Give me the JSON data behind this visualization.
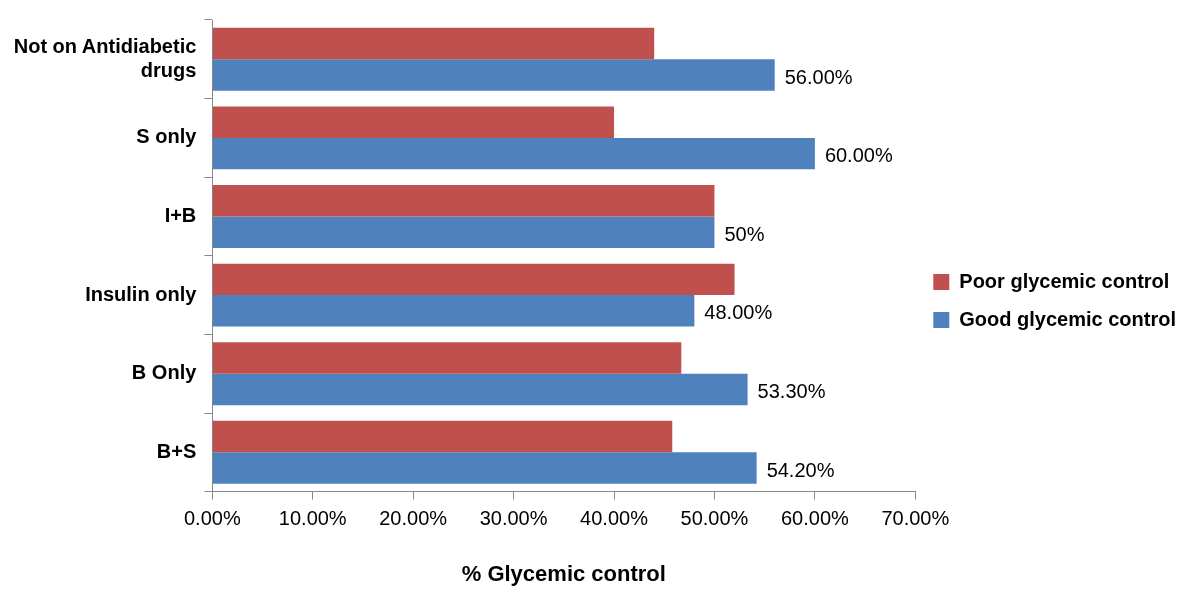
{
  "chart_data": {
    "type": "bar",
    "orientation": "horizontal",
    "xlabel": "% Glycemic control",
    "categories": [
      "Not on Antidiabetic drugs",
      "S only",
      "I+B",
      "Insulin only",
      "B Only",
      "B+S"
    ],
    "series": [
      {
        "name": "Poor glycemic control",
        "color": "#c0504d",
        "values": [
          44,
          40,
          50,
          52,
          46.7,
          45.8
        ]
      },
      {
        "name": "Good glycemic control",
        "color": "#4f81bd",
        "values": [
          56,
          60,
          50,
          48,
          53.3,
          54.2
        ],
        "value_labels": [
          "56.00%",
          "60.00%",
          "50%",
          "48.00%",
          "53.30%",
          "54.20%"
        ]
      }
    ],
    "xlim": [
      0,
      70
    ],
    "xticks": [
      {
        "value": 0,
        "label": "0.00%"
      },
      {
        "value": 10,
        "label": "10.00%"
      },
      {
        "value": 20,
        "label": "20.00%"
      },
      {
        "value": 30,
        "label": "30.00%"
      },
      {
        "value": 40,
        "label": "40.00%"
      },
      {
        "value": 50,
        "label": "50.00%"
      },
      {
        "value": 60,
        "label": "60.00%"
      },
      {
        "value": 70,
        "label": "70.00%"
      }
    ],
    "grid": false,
    "legend": "right"
  }
}
